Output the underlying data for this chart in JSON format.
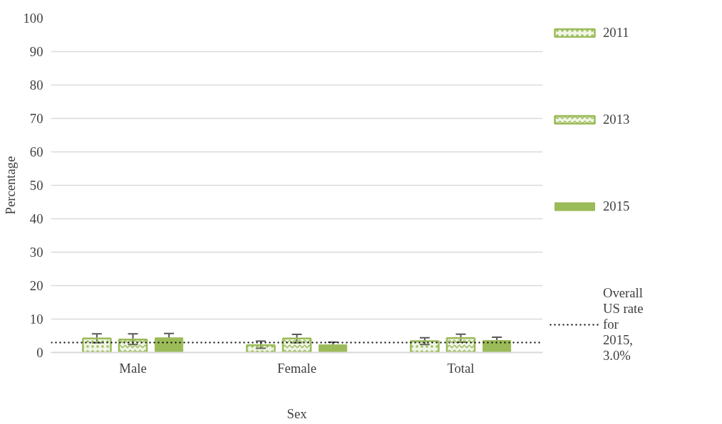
{
  "chart_data": {
    "type": "bar",
    "xlabel": "Sex",
    "ylabel": "Percentage",
    "categories": [
      "Male",
      "Female",
      "Total"
    ],
    "series": [
      {
        "name": "2011",
        "color": "#9bbb59",
        "values": [
          4.2,
          2.2,
          3.4
        ],
        "errors": [
          [
            2.9,
            5.6
          ],
          [
            1.3,
            3.4
          ],
          [
            2.4,
            4.4
          ]
        ]
      },
      {
        "name": "2013",
        "color": "#9bbb59",
        "values": [
          3.9,
          4.2,
          4.3
        ],
        "errors": [
          [
            2.4,
            5.6
          ],
          [
            2.9,
            5.4
          ],
          [
            3.1,
            5.5
          ]
        ]
      },
      {
        "name": "2015",
        "color": "#9bbb59",
        "values": [
          4.4,
          2.3,
          3.6
        ],
        "errors": [
          [
            3.5,
            5.7
          ],
          [
            1.6,
            3.1
          ],
          [
            3.1,
            4.6
          ]
        ]
      }
    ],
    "ylim": [
      0,
      100
    ],
    "yticks": [
      0,
      10,
      20,
      30,
      40,
      50,
      60,
      70,
      80,
      90,
      100
    ],
    "grid": "y",
    "legend": "right",
    "ref_lines": [
      {
        "axis": "y",
        "value": 3.0,
        "label": "Overall US rate for 2015, 3.0%",
        "color": "#000000",
        "line_style": "dotted"
      }
    ]
  }
}
